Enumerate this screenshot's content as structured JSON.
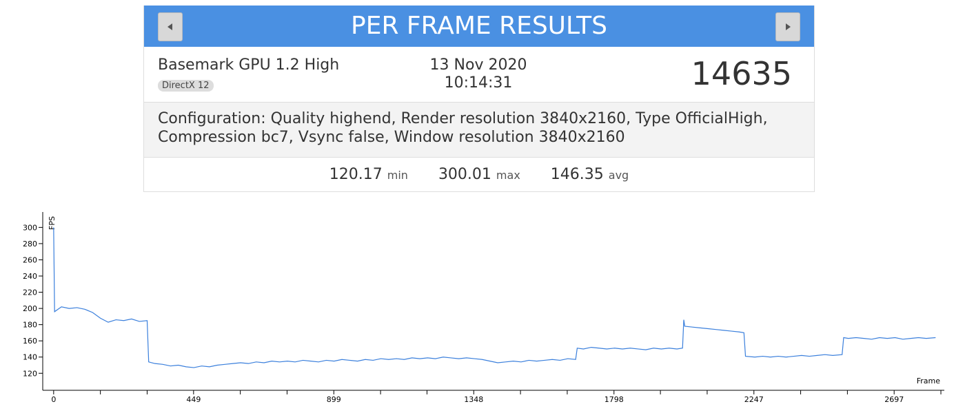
{
  "header": {
    "title": "PER FRAME RESULTS"
  },
  "result": {
    "test": "Basemark GPU 1.2 High",
    "api": "DirectX 12",
    "date": "13 Nov 2020",
    "time": "10:14:31",
    "score": 14635,
    "configuration": "Configuration: Quality highend, Render resolution 3840x2160, Type OfficialHigh, Compression bc7, Vsync false, Window resolution 3840x2160",
    "stats": [
      {
        "value": 120.17,
        "label": "min"
      },
      {
        "value": 300.01,
        "label": "max"
      },
      {
        "value": 146.35,
        "label": "avg"
      }
    ]
  },
  "chart_data": {
    "type": "line",
    "y_label": "FPS",
    "x_label": "Frame",
    "color": "#3a7fdc",
    "xlim": [
      -35,
      2858
    ],
    "ylim": [
      99,
      319
    ],
    "xticks": [
      0,
      449,
      899,
      1348,
      1798,
      2247,
      2697
    ],
    "xminorticks": [
      150,
      300,
      599,
      749,
      1049,
      1198,
      1498,
      1648,
      1947,
      2097,
      2397,
      2547,
      2847
    ],
    "yticks": [
      120,
      140,
      160,
      180,
      200,
      220,
      240,
      260,
      280,
      300
    ],
    "x": [
      0,
      3,
      25,
      50,
      75,
      100,
      125,
      150,
      175,
      200,
      225,
      250,
      275,
      300,
      305,
      325,
      350,
      375,
      400,
      425,
      450,
      475,
      500,
      525,
      550,
      575,
      600,
      625,
      650,
      675,
      700,
      725,
      750,
      775,
      800,
      825,
      850,
      875,
      900,
      925,
      950,
      975,
      1000,
      1025,
      1050,
      1075,
      1100,
      1125,
      1150,
      1175,
      1200,
      1225,
      1250,
      1275,
      1300,
      1325,
      1350,
      1375,
      1400,
      1425,
      1450,
      1475,
      1500,
      1525,
      1550,
      1575,
      1600,
      1625,
      1650,
      1675,
      1680,
      1700,
      1725,
      1750,
      1775,
      1800,
      1825,
      1850,
      1875,
      1900,
      1925,
      1950,
      1975,
      2000,
      2018,
      2022,
      2025,
      2050,
      2075,
      2100,
      2125,
      2150,
      2175,
      2200,
      2215,
      2220,
      2250,
      2275,
      2300,
      2325,
      2350,
      2375,
      2400,
      2425,
      2450,
      2475,
      2500,
      2530,
      2535,
      2550,
      2575,
      2600,
      2625,
      2650,
      2675,
      2700,
      2725,
      2750,
      2775,
      2800,
      2830
    ],
    "values": [
      300,
      196,
      202,
      200,
      201,
      199,
      195,
      188,
      183,
      186,
      185,
      187,
      184,
      185,
      134,
      132,
      131,
      129,
      130,
      128,
      127,
      129,
      128,
      130,
      131,
      132,
      133,
      132,
      134,
      133,
      135,
      134,
      135,
      134,
      136,
      135,
      134,
      136,
      135,
      137,
      136,
      135,
      137,
      136,
      138,
      137,
      138,
      137,
      139,
      138,
      139,
      138,
      140,
      139,
      138,
      139,
      138,
      137,
      135,
      133,
      134,
      135,
      134,
      136,
      135,
      136,
      137,
      136,
      138,
      137,
      151,
      150,
      152,
      151,
      150,
      151,
      150,
      151,
      150,
      149,
      151,
      150,
      151,
      150,
      151,
      186,
      178,
      177,
      176,
      175,
      174,
      173,
      172,
      171,
      170,
      141,
      140,
      141,
      140,
      141,
      140,
      141,
      142,
      141,
      142,
      143,
      142,
      143,
      164,
      163,
      164,
      163,
      162,
      164,
      163,
      164,
      162,
      163,
      164,
      163,
      164
    ]
  }
}
